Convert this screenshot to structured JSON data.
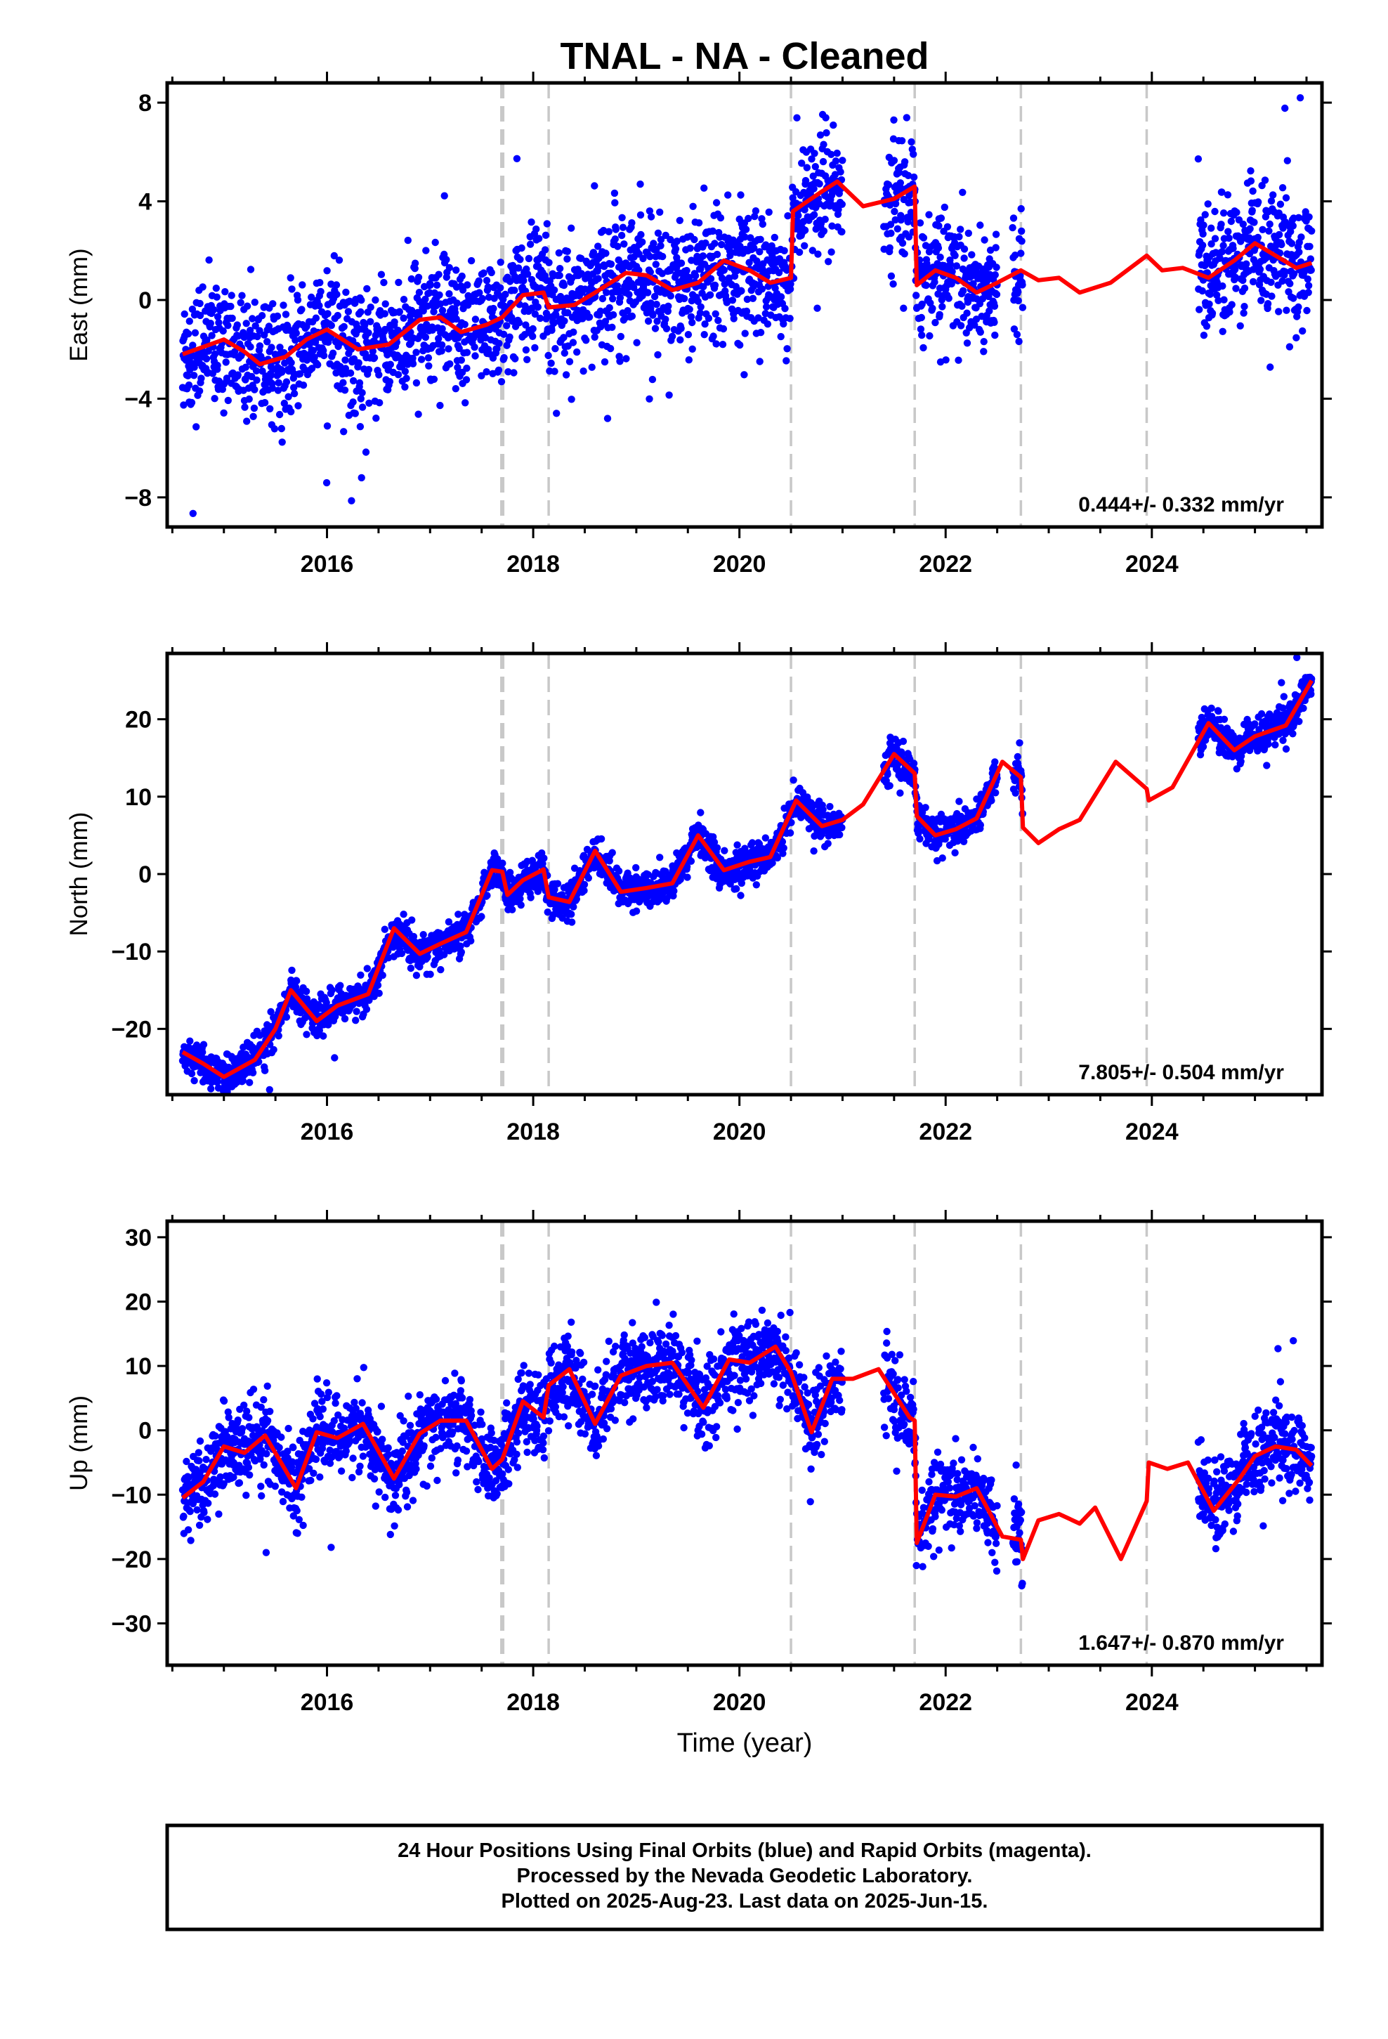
{
  "title": "TNAL  - NA - Cleaned",
  "xlabel": "Time (year)",
  "colors": {
    "points": "#0000ff",
    "fit": "#ff0000",
    "breaks": "#c8c8c8",
    "frame": "#000000"
  },
  "chart_data": [
    {
      "type": "scatter",
      "ylabel": "East (mm)",
      "rate": "0.444+/- 0.332 mm/yr",
      "xlim": [
        2014.45,
        2025.65
      ],
      "ylim": [
        -9.2,
        8.8
      ],
      "yticks": [
        -8,
        -4,
        0,
        4,
        8
      ],
      "yticklabels": [
        "−8",
        "−4",
        "0",
        "4",
        "8"
      ],
      "xticks": [
        2016,
        2018,
        2020,
        2022,
        2024
      ],
      "xticklabels": [
        "2016",
        "2018",
        "2020",
        "2022",
        "2024"
      ],
      "breaks": [
        2017.7,
        2018.15,
        2020.5,
        2021.7,
        2022.73,
        2023.95
      ],
      "fit": [
        [
          2014.6,
          -2.2
        ],
        [
          2014.8,
          -1.9
        ],
        [
          2015.0,
          -1.6
        ],
        [
          2015.2,
          -2.1
        ],
        [
          2015.35,
          -2.6
        ],
        [
          2015.6,
          -2.3
        ],
        [
          2015.8,
          -1.6
        ],
        [
          2016.0,
          -1.2
        ],
        [
          2016.3,
          -2.0
        ],
        [
          2016.6,
          -1.8
        ],
        [
          2016.9,
          -0.8
        ],
        [
          2017.1,
          -0.7
        ],
        [
          2017.3,
          -1.3
        ],
        [
          2017.55,
          -1.0
        ],
        [
          2017.7,
          -0.7
        ],
        [
          2017.9,
          0.2
        ],
        [
          2018.1,
          0.3
        ],
        [
          2018.15,
          -0.3
        ],
        [
          2018.4,
          -0.2
        ],
        [
          2018.6,
          0.3
        ],
        [
          2018.9,
          1.1
        ],
        [
          2019.1,
          1.0
        ],
        [
          2019.35,
          0.4
        ],
        [
          2019.6,
          0.7
        ],
        [
          2019.85,
          1.6
        ],
        [
          2020.1,
          1.2
        ],
        [
          2020.3,
          0.7
        ],
        [
          2020.5,
          0.9
        ],
        [
          2020.52,
          3.6
        ],
        [
          2020.8,
          4.4
        ],
        [
          2020.95,
          4.8
        ],
        [
          2021.2,
          3.8
        ],
        [
          2021.5,
          4.1
        ],
        [
          2021.7,
          4.6
        ],
        [
          2021.72,
          0.6
        ],
        [
          2021.9,
          1.2
        ],
        [
          2022.1,
          0.9
        ],
        [
          2022.3,
          0.3
        ],
        [
          2022.5,
          0.7
        ],
        [
          2022.73,
          1.2
        ],
        [
          2022.9,
          0.8
        ],
        [
          2023.1,
          0.9
        ],
        [
          2023.3,
          0.3
        ],
        [
          2023.6,
          0.7
        ],
        [
          2023.95,
          1.8
        ],
        [
          2024.1,
          1.2
        ],
        [
          2024.3,
          1.3
        ],
        [
          2024.55,
          0.9
        ],
        [
          2024.8,
          1.6
        ],
        [
          2025.0,
          2.3
        ],
        [
          2025.2,
          1.8
        ],
        [
          2025.4,
          1.3
        ],
        [
          2025.55,
          1.5
        ]
      ],
      "scatter": {
        "segments": [
          [
            2014.6,
            2021.0
          ],
          [
            2021.4,
            2022.5
          ],
          [
            2022.65,
            2022.75
          ],
          [
            2024.45,
            2025.55
          ]
        ],
        "sigma": 1.3,
        "density": 0.9
      }
    },
    {
      "type": "scatter",
      "ylabel": "North (mm)",
      "rate": "7.805+/- 0.504 mm/yr",
      "xlim": [
        2014.45,
        2025.65
      ],
      "ylim": [
        -28.5,
        28.5
      ],
      "yticks": [
        -20,
        -10,
        0,
        10,
        20
      ],
      "yticklabels": [
        "−20",
        "−10",
        "0",
        "10",
        "20"
      ],
      "xticks": [
        2016,
        2018,
        2020,
        2022,
        2024
      ],
      "xticklabels": [
        "2016",
        "2018",
        "2020",
        "2022",
        "2024"
      ],
      "breaks": [
        2017.7,
        2018.15,
        2020.5,
        2021.7,
        2022.73,
        2023.95
      ],
      "fit": [
        [
          2014.6,
          -23
        ],
        [
          2014.8,
          -24.5
        ],
        [
          2015.0,
          -26.2
        ],
        [
          2015.3,
          -24
        ],
        [
          2015.5,
          -20
        ],
        [
          2015.65,
          -15
        ],
        [
          2015.9,
          -19
        ],
        [
          2016.1,
          -17
        ],
        [
          2016.4,
          -15.5
        ],
        [
          2016.65,
          -7
        ],
        [
          2016.9,
          -10.3
        ],
        [
          2017.1,
          -9
        ],
        [
          2017.35,
          -7.5
        ],
        [
          2017.6,
          0.5
        ],
        [
          2017.7,
          0.3
        ],
        [
          2017.75,
          -2.7
        ],
        [
          2017.9,
          -0.8
        ],
        [
          2018.1,
          0.6
        ],
        [
          2018.15,
          -3
        ],
        [
          2018.35,
          -3.6
        ],
        [
          2018.6,
          3
        ],
        [
          2018.85,
          -2.3
        ],
        [
          2019.1,
          -1.8
        ],
        [
          2019.35,
          -1.2
        ],
        [
          2019.6,
          5
        ],
        [
          2019.85,
          0.5
        ],
        [
          2020.1,
          1.6
        ],
        [
          2020.3,
          2.2
        ],
        [
          2020.55,
          9.5
        ],
        [
          2020.8,
          6.2
        ],
        [
          2021.0,
          7
        ],
        [
          2021.2,
          9
        ],
        [
          2021.5,
          15.5
        ],
        [
          2021.7,
          13
        ],
        [
          2021.72,
          7.5
        ],
        [
          2021.9,
          5
        ],
        [
          2022.1,
          5.8
        ],
        [
          2022.3,
          7.2
        ],
        [
          2022.55,
          14.5
        ],
        [
          2022.73,
          12.5
        ],
        [
          2022.75,
          6
        ],
        [
          2022.9,
          4
        ],
        [
          2023.1,
          5.8
        ],
        [
          2023.3,
          7
        ],
        [
          2023.65,
          14.5
        ],
        [
          2023.95,
          11
        ],
        [
          2023.97,
          9.5
        ],
        [
          2024.2,
          11.2
        ],
        [
          2024.55,
          19.5
        ],
        [
          2024.8,
          16
        ],
        [
          2025.0,
          17.8
        ],
        [
          2025.3,
          19.2
        ],
        [
          2025.55,
          25
        ]
      ],
      "scatter": {
        "segments": [
          [
            2014.6,
            2021.0
          ],
          [
            2021.4,
            2022.5
          ],
          [
            2022.65,
            2022.75
          ],
          [
            2024.45,
            2025.55
          ]
        ],
        "sigma": 1.2,
        "density": 0.9
      }
    },
    {
      "type": "scatter",
      "ylabel": "Up (mm)",
      "rate": "1.647+/- 0.870 mm/yr",
      "xlim": [
        2014.45,
        2025.65
      ],
      "ylim": [
        -36.5,
        32.5
      ],
      "yticks": [
        -30,
        -20,
        -10,
        0,
        10,
        20,
        30
      ],
      "yticklabels": [
        "−30",
        "−20",
        "−10",
        "0",
        "10",
        "20",
        "30"
      ],
      "xticks": [
        2016,
        2018,
        2020,
        2022,
        2024
      ],
      "xticklabels": [
        "2016",
        "2018",
        "2020",
        "2022",
        "2024"
      ],
      "breaks": [
        2017.7,
        2018.15,
        2020.5,
        2021.7,
        2022.73,
        2023.95
      ],
      "fit": [
        [
          2014.6,
          -10.5
        ],
        [
          2014.8,
          -8
        ],
        [
          2015.0,
          -2.5
        ],
        [
          2015.2,
          -3.5
        ],
        [
          2015.4,
          -0.8
        ],
        [
          2015.7,
          -9
        ],
        [
          2015.9,
          -0.3
        ],
        [
          2016.1,
          -1.2
        ],
        [
          2016.35,
          1
        ],
        [
          2016.65,
          -7.5
        ],
        [
          2016.9,
          -0.5
        ],
        [
          2017.1,
          1.5
        ],
        [
          2017.35,
          1.5
        ],
        [
          2017.6,
          -6
        ],
        [
          2017.7,
          -4.5
        ],
        [
          2017.9,
          4.5
        ],
        [
          2018.1,
          2
        ],
        [
          2018.15,
          7
        ],
        [
          2018.35,
          9.5
        ],
        [
          2018.6,
          1
        ],
        [
          2018.85,
          8.5
        ],
        [
          2019.1,
          10
        ],
        [
          2019.35,
          10.5
        ],
        [
          2019.65,
          3.5
        ],
        [
          2019.9,
          11
        ],
        [
          2020.1,
          10.5
        ],
        [
          2020.35,
          13
        ],
        [
          2020.5,
          9
        ],
        [
          2020.7,
          -0.3
        ],
        [
          2020.9,
          8
        ],
        [
          2021.1,
          8
        ],
        [
          2021.35,
          9.5
        ],
        [
          2021.65,
          2
        ],
        [
          2021.7,
          1.5
        ],
        [
          2021.72,
          -17.5
        ],
        [
          2021.9,
          -10
        ],
        [
          2022.1,
          -10.3
        ],
        [
          2022.3,
          -9
        ],
        [
          2022.55,
          -16.5
        ],
        [
          2022.73,
          -17
        ],
        [
          2022.75,
          -20
        ],
        [
          2022.9,
          -14
        ],
        [
          2023.1,
          -13
        ],
        [
          2023.3,
          -14.5
        ],
        [
          2023.45,
          -12
        ],
        [
          2023.7,
          -20
        ],
        [
          2023.95,
          -11
        ],
        [
          2023.97,
          -5
        ],
        [
          2024.15,
          -6
        ],
        [
          2024.35,
          -5
        ],
        [
          2024.6,
          -12.5
        ],
        [
          2024.85,
          -7.5
        ],
        [
          2025.0,
          -4
        ],
        [
          2025.2,
          -2.5
        ],
        [
          2025.4,
          -3
        ],
        [
          2025.55,
          -5.5
        ]
      ],
      "scatter": {
        "segments": [
          [
            2014.6,
            2021.0
          ],
          [
            2021.4,
            2022.5
          ],
          [
            2022.65,
            2022.75
          ],
          [
            2024.45,
            2025.55
          ]
        ],
        "sigma": 3.2,
        "density": 0.9
      }
    }
  ],
  "footer": {
    "line1": "24 Hour Positions Using Final Orbits (blue) and Rapid Orbits (magenta).",
    "line2": "Processed by the Nevada Geodetic Laboratory.",
    "line3": "Plotted on 2025-Aug-23. Last data on 2025-Jun-15."
  }
}
